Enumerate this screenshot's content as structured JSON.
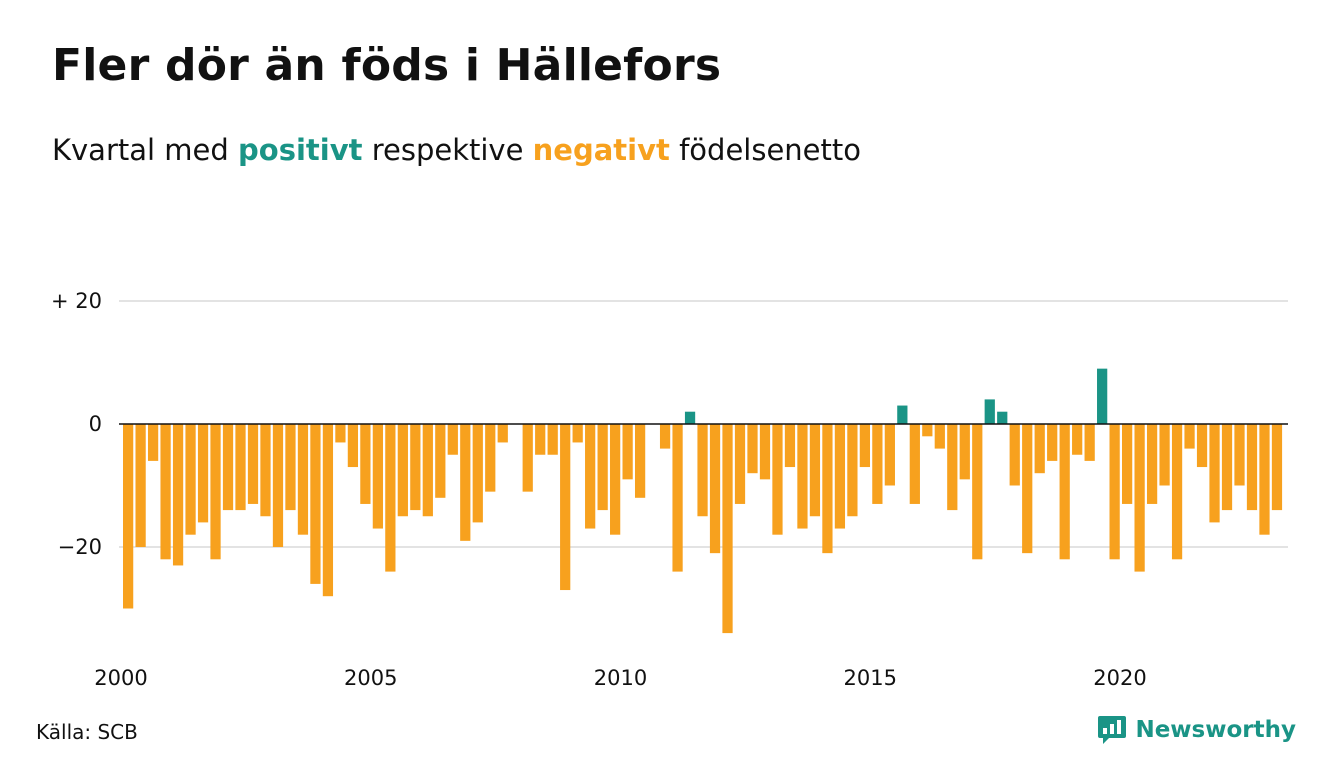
{
  "title": "Fler dör än föds i Hällefors",
  "subtitle": {
    "prefix": "Kvartal med",
    "positive_word": "positivt",
    "middle": "respektive",
    "negative_word": "negativt",
    "suffix": "födelsenetto"
  },
  "source": "Källa: SCB",
  "brand": {
    "name": "Newsworthy",
    "icon": "newsworthy-logo-icon"
  },
  "colors": {
    "positive": "#1a9486",
    "negative": "#f7a11e",
    "grid": "#e3e3e3",
    "text": "#111111"
  },
  "chart_data": {
    "type": "bar",
    "title": "Fler dör än föds i Hällefors",
    "subtitle": "Kvartal med positivt respektive negativt födelsenetto",
    "x_start": 2000,
    "x_step": 0.25,
    "x_ticks": [
      {
        "value": 2000,
        "label": "2000"
      },
      {
        "value": 2005,
        "label": "2005"
      },
      {
        "value": 2010,
        "label": "2010"
      },
      {
        "value": 2015,
        "label": "2015"
      },
      {
        "value": 2020,
        "label": "2020"
      }
    ],
    "y_ticks": [
      {
        "value": 20,
        "label": "+ 20"
      },
      {
        "value": 0,
        "label": "0"
      },
      {
        "value": -20,
        "label": "−20"
      }
    ],
    "ylim": [
      -38,
      24
    ],
    "grid": true,
    "values": [
      -30,
      -20,
      -6,
      -22,
      -23,
      -18,
      -16,
      -22,
      -14,
      -14,
      -13,
      -15,
      -20,
      -14,
      -18,
      -26,
      -28,
      -3,
      -7,
      -13,
      -17,
      -24,
      -15,
      -14,
      -15,
      -12,
      -5,
      -19,
      -16,
      -11,
      -3,
      0,
      -11,
      -5,
      -5,
      -27,
      -3,
      -17,
      -14,
      -18,
      -9,
      -12,
      0,
      -4,
      -24,
      2,
      -15,
      -21,
      -34,
      -13,
      -8,
      -9,
      -18,
      -7,
      -17,
      -15,
      -21,
      -17,
      -15,
      -7,
      -13,
      -10,
      3,
      -13,
      -2,
      -4,
      -14,
      -9,
      -22,
      4,
      2,
      -10,
      -21,
      -8,
      -6,
      -22,
      -5,
      -6,
      9,
      -22,
      -13,
      -24,
      -13,
      -10,
      -22,
      -4,
      -7,
      -16,
      -14,
      -10,
      -14,
      -18,
      -14
    ]
  }
}
